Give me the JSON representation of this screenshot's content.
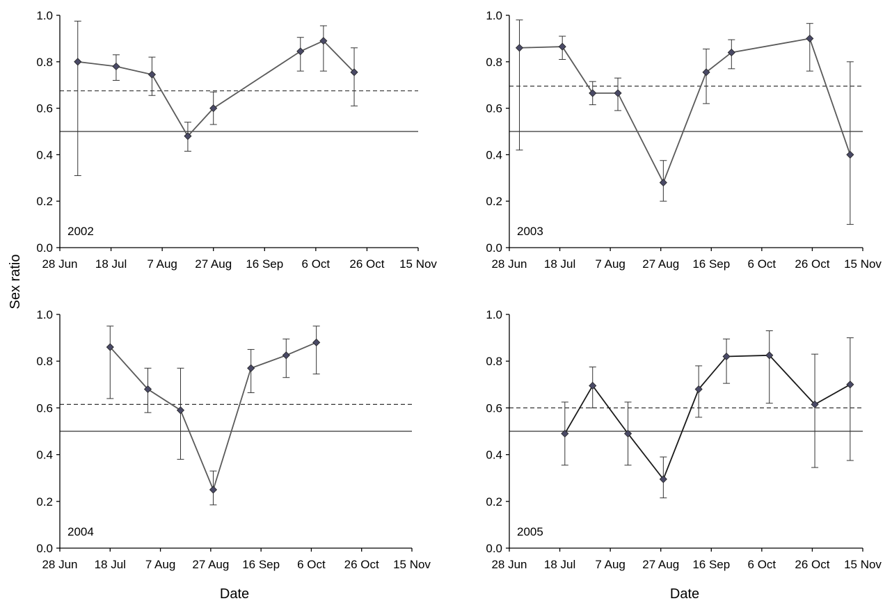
{
  "figure": {
    "ylabel": "Sex ratio",
    "xlabel": "Date"
  },
  "chart_data": [
    {
      "type": "line",
      "panel_label": "2002",
      "xlabel": "",
      "ylabel": "Sex ratio",
      "x_ticks": [
        "28 Jun",
        "18 Jul",
        "7 Aug",
        "27 Aug",
        "16 Sep",
        "6 Oct",
        "26 Oct",
        "15 Nov"
      ],
      "xlim": [
        "28 Jun",
        "15 Nov"
      ],
      "y_ticks": [
        "0.0",
        "0.2",
        "0.4",
        "0.6",
        "0.8",
        "1.0"
      ],
      "ylim": [
        0,
        1
      ],
      "reference_lines": [
        {
          "y": 0.5,
          "style": "solid"
        },
        {
          "y": 0.675,
          "style": "dashed"
        }
      ],
      "series": [
        {
          "x": [
            "5 Jul",
            "20 Jul",
            "3 Aug",
            "17 Aug",
            "27 Aug",
            "30 Sep",
            "9 Oct",
            "21 Oct"
          ],
          "y": [
            0.8,
            0.78,
            0.745,
            0.48,
            0.6,
            0.845,
            0.89,
            0.755
          ],
          "error_low": [
            0.31,
            0.72,
            0.655,
            0.415,
            0.53,
            0.76,
            0.76,
            0.61
          ],
          "error_high": [
            0.975,
            0.83,
            0.82,
            0.54,
            0.67,
            0.905,
            0.955,
            0.86
          ],
          "color": "#5a5a5a",
          "marker_color": "#4a4a66"
        }
      ]
    },
    {
      "type": "line",
      "panel_label": "2003",
      "xlabel": "",
      "ylabel": "",
      "x_ticks": [
        "28 Jun",
        "18 Jul",
        "7 Aug",
        "27 Aug",
        "16 Sep",
        "6 Oct",
        "26 Oct",
        "15 Nov"
      ],
      "xlim": [
        "28 Jun",
        "15 Nov"
      ],
      "y_ticks": [
        "0.0",
        "0.2",
        "0.4",
        "0.6",
        "0.8",
        "1.0"
      ],
      "ylim": [
        0,
        1
      ],
      "reference_lines": [
        {
          "y": 0.5,
          "style": "solid"
        },
        {
          "y": 0.695,
          "style": "dashed"
        }
      ],
      "series": [
        {
          "x": [
            "2 Jul",
            "19 Jul",
            "31 Jul",
            "10 Aug",
            "28 Aug",
            "14 Sep",
            "24 Sep",
            "25 Oct",
            "10 Nov"
          ],
          "y": [
            0.86,
            0.865,
            0.665,
            0.665,
            0.28,
            0.755,
            0.84,
            0.9,
            0.4
          ],
          "error_low": [
            0.42,
            0.81,
            0.615,
            0.59,
            0.2,
            0.62,
            0.77,
            0.76,
            0.1
          ],
          "error_high": [
            0.98,
            0.91,
            0.715,
            0.73,
            0.375,
            0.855,
            0.895,
            0.965,
            0.8
          ],
          "color": "#5a5a5a",
          "marker_color": "#4a4a66"
        }
      ]
    },
    {
      "type": "line",
      "panel_label": "2004",
      "xlabel": "Date",
      "ylabel": "",
      "x_ticks": [
        "28 Jun",
        "18 Jul",
        "7 Aug",
        "27 Aug",
        "16 Sep",
        "6 Oct",
        "26 Oct",
        "15 Nov"
      ],
      "xlim": [
        "28 Jun",
        "15 Nov"
      ],
      "y_ticks": [
        "0.0",
        "0.2",
        "0.4",
        "0.6",
        "0.8",
        "1.0"
      ],
      "ylim": [
        0,
        1
      ],
      "reference_lines": [
        {
          "y": 0.5,
          "style": "solid"
        },
        {
          "y": 0.615,
          "style": "dashed"
        }
      ],
      "series": [
        {
          "x": [
            "18 Jul",
            "2 Aug",
            "15 Aug",
            "28 Aug",
            "12 Sep",
            "26 Sep",
            "8 Oct"
          ],
          "y": [
            0.86,
            0.68,
            0.59,
            0.25,
            0.77,
            0.825,
            0.88
          ],
          "error_low": [
            0.64,
            0.58,
            0.38,
            0.185,
            0.665,
            0.73,
            0.745
          ],
          "error_high": [
            0.95,
            0.77,
            0.77,
            0.33,
            0.85,
            0.895,
            0.95
          ],
          "color": "#5a5a5a",
          "marker_color": "#4a4a66"
        }
      ]
    },
    {
      "type": "line",
      "panel_label": "2005",
      "xlabel": "Date",
      "ylabel": "",
      "x_ticks": [
        "28 Jun",
        "18 Jul",
        "7 Aug",
        "27 Aug",
        "16 Sep",
        "6 Oct",
        "26 Oct",
        "15 Nov"
      ],
      "xlim": [
        "28 Jun",
        "15 Nov"
      ],
      "y_ticks": [
        "0.0",
        "0.2",
        "0.4",
        "0.6",
        "0.8",
        "1.0"
      ],
      "ylim": [
        0,
        1
      ],
      "reference_lines": [
        {
          "y": 0.5,
          "style": "solid"
        },
        {
          "y": 0.6,
          "style": "dashed"
        }
      ],
      "series": [
        {
          "x": [
            "20 Jul",
            "31 Jul",
            "14 Aug",
            "28 Aug",
            "11 Sep",
            "22 Sep",
            "9 Oct",
            "27 Oct",
            "10 Nov"
          ],
          "y": [
            0.49,
            0.695,
            0.49,
            0.295,
            0.68,
            0.82,
            0.825,
            0.615,
            0.7
          ],
          "error_low": [
            0.355,
            0.6,
            0.355,
            0.215,
            0.56,
            0.705,
            0.62,
            0.345,
            0.375
          ],
          "error_high": [
            0.625,
            0.775,
            0.625,
            0.39,
            0.78,
            0.895,
            0.93,
            0.83,
            0.9
          ],
          "color": "#1a1a1a",
          "marker_color": "#4a4a66"
        }
      ]
    }
  ]
}
